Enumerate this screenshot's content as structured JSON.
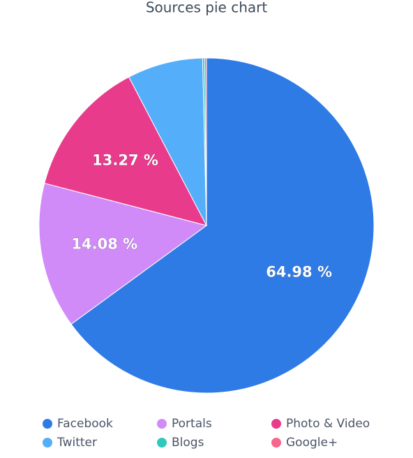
{
  "chart_data": {
    "type": "pie",
    "title": "Sources pie chart",
    "categories": [
      "Facebook",
      "Portals",
      "Photo & Video",
      "Twitter",
      "Blogs",
      "Google+"
    ],
    "values": [
      64.98,
      14.08,
      13.27,
      7.3,
      0.2,
      0.17
    ],
    "value_labels": [
      "64.98 %",
      "14.08 %",
      "13.27 %",
      null,
      null,
      null
    ],
    "colors": [
      "#2f7be6",
      "#d08bf8",
      "#e93b8b",
      "#55aefa",
      "#2fc8bf",
      "#f7668b"
    ]
  }
}
